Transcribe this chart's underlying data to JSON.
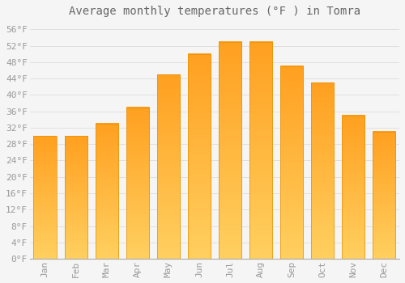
{
  "title": "Average monthly temperatures (°F ) in Tomra",
  "months": [
    "Jan",
    "Feb",
    "Mar",
    "Apr",
    "May",
    "Jun",
    "Jul",
    "Aug",
    "Sep",
    "Oct",
    "Nov",
    "Dec"
  ],
  "values": [
    30,
    30,
    33,
    37,
    45,
    50,
    53,
    53,
    47,
    43,
    35,
    31
  ],
  "bar_color_top": "#FFA500",
  "bar_color_bottom": "#FFD966",
  "bar_edge_color": "#E89000",
  "background_color": "#F5F5F5",
  "plot_bg_color": "#F5F5F5",
  "grid_color": "#DDDDDD",
  "text_color": "#999999",
  "title_color": "#666666",
  "ylim": [
    0,
    58
  ],
  "yticks": [
    0,
    4,
    8,
    12,
    16,
    20,
    24,
    28,
    32,
    36,
    40,
    44,
    48,
    52,
    56
  ],
  "ytick_labels": [
    "0°F",
    "4°F",
    "8°F",
    "12°F",
    "16°F",
    "20°F",
    "24°F",
    "28°F",
    "32°F",
    "36°F",
    "40°F",
    "44°F",
    "48°F",
    "52°F",
    "56°F"
  ],
  "title_fontsize": 10,
  "tick_fontsize": 8
}
